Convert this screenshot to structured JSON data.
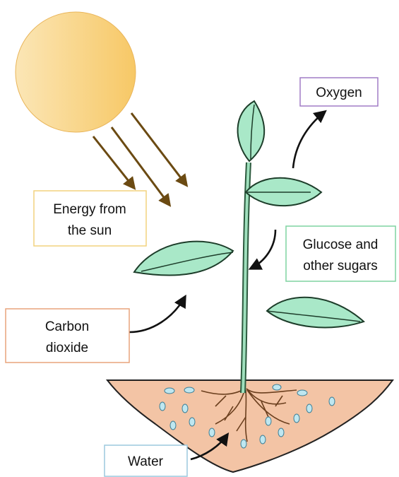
{
  "labels": {
    "oxygen": [
      "Oxygen"
    ],
    "energy": [
      "Energy from",
      "the sun"
    ],
    "glucose": [
      "Glucose and",
      "other sugars"
    ],
    "carbon": [
      "Carbon",
      "dioxide"
    ],
    "water": [
      "Water"
    ]
  }
}
